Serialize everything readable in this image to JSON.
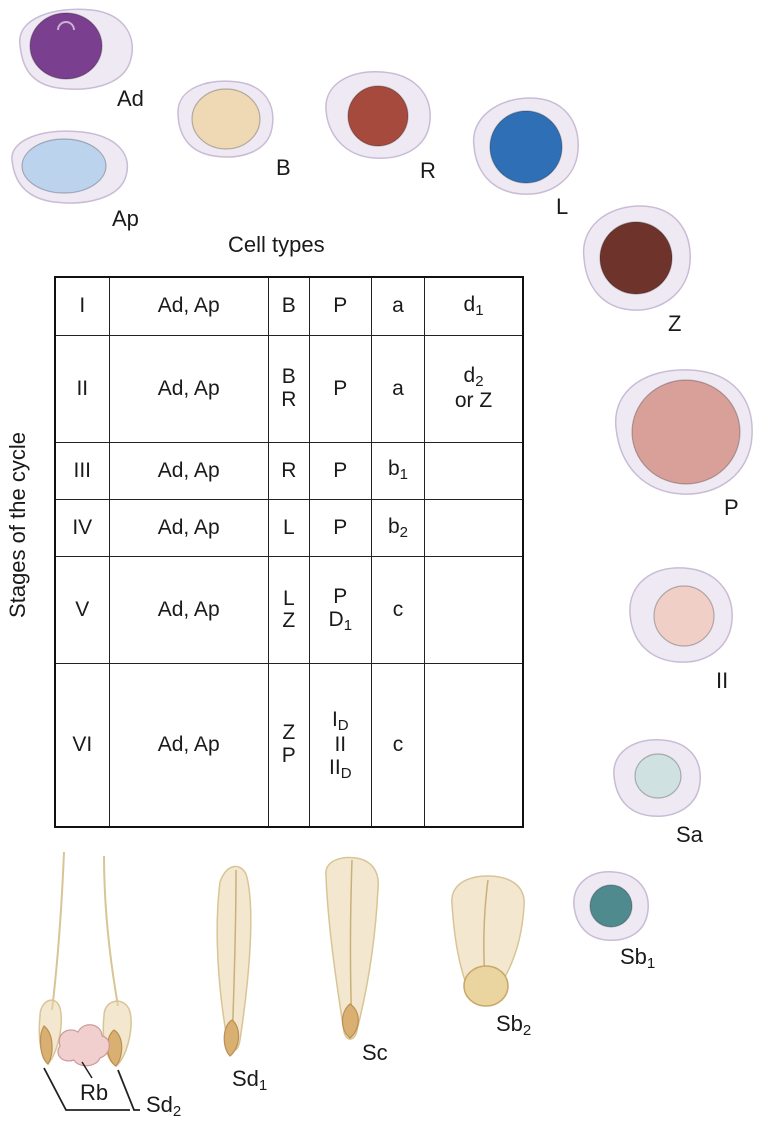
{
  "title": "Cell types",
  "row_axis_label": "Stages of the cycle",
  "colors": {
    "cell_body": "#efe9f3",
    "cell_outline": "#c9bcd6",
    "Ad": "#7a3f8e",
    "Ap": "#bcd3ee",
    "B": "#eed9b4",
    "R": "#a64a3e",
    "L": "#2f6fb5",
    "Z": "#6e332a",
    "P": "#d9a09a",
    "II": "#efcfc6",
    "Sa": "#cfe1e1",
    "Sb1": "#4f8a8e",
    "spermatid": "#e9d6a7",
    "spermatid_outline": "#d8c596",
    "Rb": "#f1cfcf"
  },
  "cells": [
    {
      "id": "Ad",
      "label": "Ad",
      "sub": ""
    },
    {
      "id": "Ap",
      "label": "Ap",
      "sub": ""
    },
    {
      "id": "B",
      "label": "B",
      "sub": ""
    },
    {
      "id": "R",
      "label": "R",
      "sub": ""
    },
    {
      "id": "L",
      "label": "L",
      "sub": ""
    },
    {
      "id": "Z",
      "label": "Z",
      "sub": ""
    },
    {
      "id": "P",
      "label": "P",
      "sub": ""
    },
    {
      "id": "II",
      "label": "II",
      "sub": ""
    },
    {
      "id": "Sa",
      "label": "Sa",
      "sub": ""
    },
    {
      "id": "Sb1",
      "label": "Sb",
      "sub": "1"
    },
    {
      "id": "Sb2",
      "label": "Sb",
      "sub": "2"
    },
    {
      "id": "Sc",
      "label": "Sc",
      "sub": ""
    },
    {
      "id": "Sd1",
      "label": "Sd",
      "sub": "1"
    },
    {
      "id": "Sd2",
      "label": "Sd",
      "sub": "2"
    },
    {
      "id": "Rb",
      "label": "Rb",
      "sub": ""
    }
  ],
  "table": {
    "rows": [
      [
        [
          {
            "t": "I"
          }
        ],
        [
          {
            "t": "Ad, Ap"
          }
        ],
        [
          {
            "t": "B"
          }
        ],
        [
          {
            "t": "P"
          }
        ],
        [
          {
            "t": "a"
          }
        ],
        [
          {
            "t": "d",
            "s": "1"
          }
        ]
      ],
      [
        [
          {
            "t": "II"
          }
        ],
        [
          {
            "t": "Ad, Ap"
          }
        ],
        [
          {
            "t": "B"
          },
          {
            "t": "R"
          }
        ],
        [
          {
            "t": "P"
          }
        ],
        [
          {
            "t": "a"
          }
        ],
        [
          {
            "t": "d",
            "s": "2"
          },
          {
            "t": "or Z"
          }
        ]
      ],
      [
        [
          {
            "t": "III"
          }
        ],
        [
          {
            "t": "Ad, Ap"
          }
        ],
        [
          {
            "t": "R"
          }
        ],
        [
          {
            "t": "P"
          }
        ],
        [
          {
            "t": "b",
            "s": "1"
          }
        ],
        []
      ],
      [
        [
          {
            "t": "IV"
          }
        ],
        [
          {
            "t": "Ad, Ap"
          }
        ],
        [
          {
            "t": "L"
          }
        ],
        [
          {
            "t": "P"
          }
        ],
        [
          {
            "t": "b",
            "s": "2"
          }
        ],
        []
      ],
      [
        [
          {
            "t": "V"
          }
        ],
        [
          {
            "t": "Ad, Ap"
          }
        ],
        [
          {
            "t": "L"
          },
          {
            "t": "Z"
          }
        ],
        [
          {
            "t": "P"
          },
          {
            "t": "D",
            "s": "1"
          }
        ],
        [
          {
            "t": "c"
          }
        ],
        []
      ],
      [
        [
          {
            "t": "VI"
          }
        ],
        [
          {
            "t": "Ad, Ap"
          }
        ],
        [
          {
            "t": "Z"
          },
          {
            "t": "P"
          }
        ],
        [
          {
            "t": "I",
            "s": "D"
          },
          {
            "t": "II"
          },
          {
            "t": "II",
            "s": "D"
          }
        ],
        [
          {
            "t": "c"
          }
        ],
        []
      ]
    ]
  }
}
